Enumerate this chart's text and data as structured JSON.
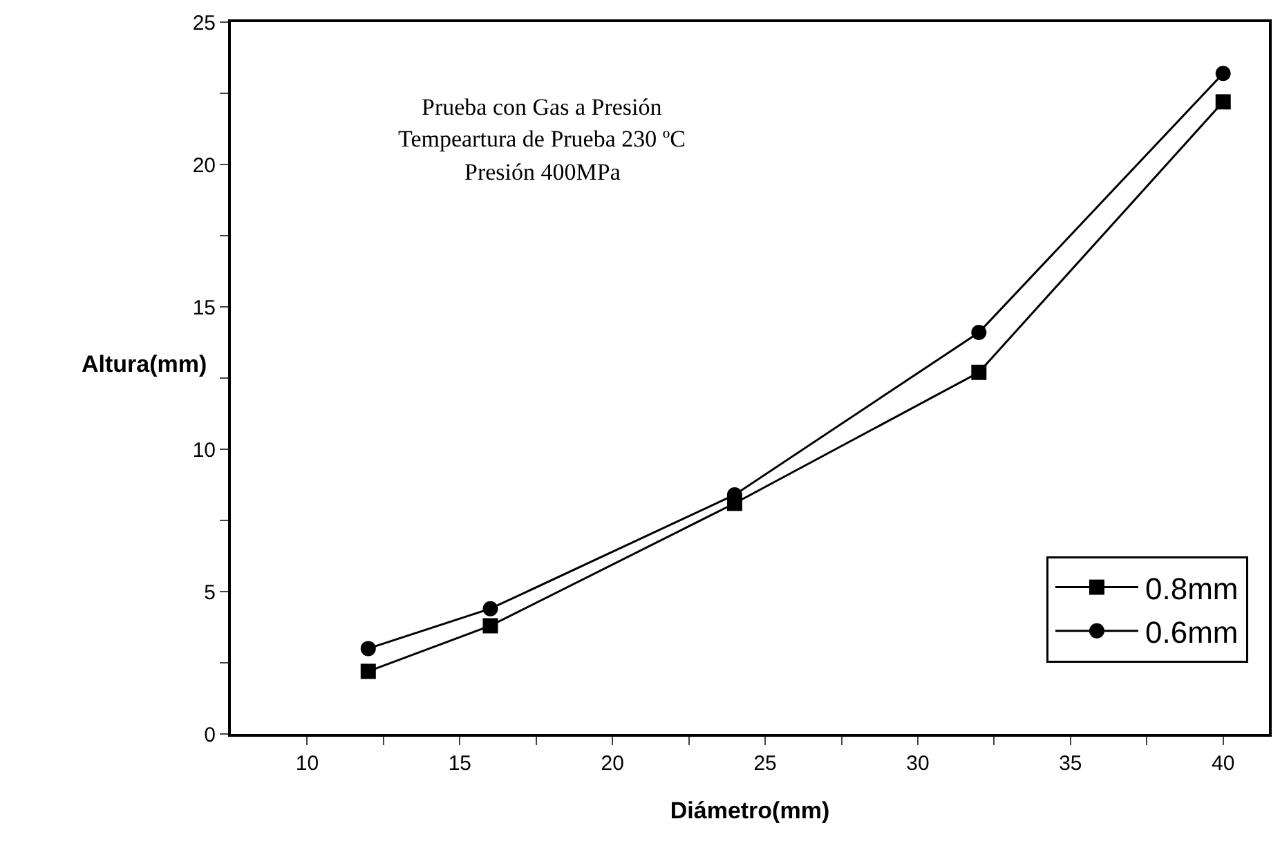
{
  "chart_data": {
    "type": "line",
    "xlabel": "Diámetro(mm)",
    "ylabel": "Altura(mm)",
    "annotations": [
      "Prueba con Gas a Presión",
      "Tempeartura de Prueba 230 ºC",
      "Presión 400MPa"
    ],
    "x": [
      12,
      16,
      24,
      32,
      40
    ],
    "series": [
      {
        "name": "0.8mm",
        "color": "#000000",
        "marker": "square",
        "values": [
          2.2,
          3.8,
          8.1,
          12.7,
          22.2
        ]
      },
      {
        "name": "0.6mm",
        "color": "#000000",
        "marker": "circle",
        "values": [
          3.0,
          4.4,
          8.4,
          14.1,
          23.2
        ]
      }
    ],
    "xlim": [
      7.5,
      41.5
    ],
    "xticks": [
      10,
      {
        "value": 12.5,
        "label": null
      },
      15,
      {
        "value": 17.5,
        "label": null
      },
      20,
      {
        "value": 22.5,
        "label": null
      },
      25,
      {
        "value": 27.5,
        "label": null
      },
      30,
      {
        "value": 32.5,
        "label": null
      },
      35,
      {
        "value": 37.5,
        "label": null
      },
      40
    ],
    "ylim": [
      0,
      25
    ],
    "yticks": [
      0,
      {
        "value": 2.5,
        "label": null
      },
      5,
      {
        "value": 7.5,
        "label": null
      },
      10,
      {
        "value": 12.5,
        "label": null
      },
      15,
      {
        "value": 17.5,
        "label": null
      },
      20,
      {
        "value": 22.5,
        "label": null
      },
      25
    ],
    "grid": false,
    "legend": "bottom right",
    "line_style": "solid"
  }
}
